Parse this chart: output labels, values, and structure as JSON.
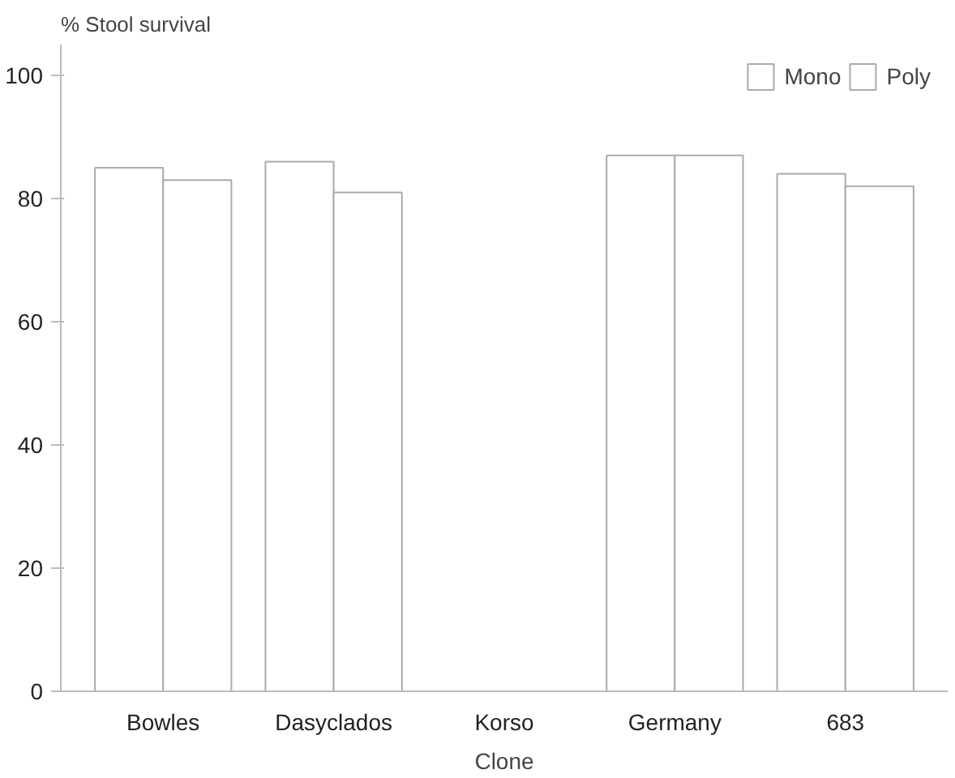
{
  "chart_data": {
    "type": "bar",
    "ylabel": "% Stool survival",
    "xlabel": "Clone",
    "categories": [
      "Bowles",
      "Dasyclados",
      "Korso",
      "Germany",
      "683"
    ],
    "series": [
      {
        "name": "Mono",
        "color": "#ffffff",
        "values": [
          85,
          86,
          0,
          87,
          84
        ]
      },
      {
        "name": "Poly",
        "color": "#ffffff",
        "values": [
          83,
          81,
          0,
          87,
          82
        ]
      }
    ],
    "ylim": [
      0,
      105
    ],
    "yticks": [
      0,
      20,
      40,
      60,
      80,
      100
    ],
    "grid": false,
    "legend": "top right"
  }
}
